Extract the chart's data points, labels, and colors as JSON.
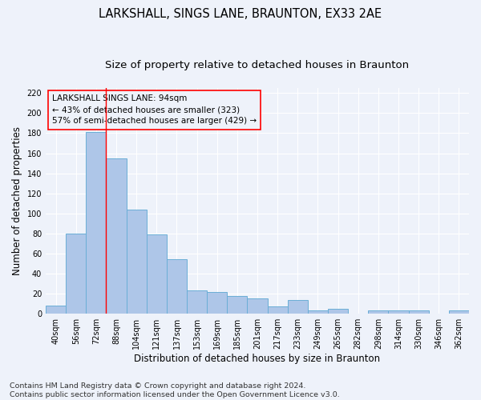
{
  "title": "LARKSHALL, SINGS LANE, BRAUNTON, EX33 2AE",
  "subtitle": "Size of property relative to detached houses in Braunton",
  "xlabel": "Distribution of detached houses by size in Braunton",
  "ylabel": "Number of detached properties",
  "categories": [
    "40sqm",
    "56sqm",
    "72sqm",
    "88sqm",
    "104sqm",
    "121sqm",
    "137sqm",
    "153sqm",
    "169sqm",
    "185sqm",
    "201sqm",
    "217sqm",
    "233sqm",
    "249sqm",
    "265sqm",
    "282sqm",
    "298sqm",
    "314sqm",
    "330sqm",
    "346sqm",
    "362sqm"
  ],
  "values": [
    8,
    80,
    181,
    155,
    104,
    79,
    54,
    23,
    22,
    18,
    15,
    7,
    14,
    3,
    5,
    0,
    3,
    3,
    3,
    0,
    3
  ],
  "bar_color": "#aec6e8",
  "bar_edge_color": "#6aaed6",
  "vline_x": 2.5,
  "vline_color": "red",
  "annotation_text_line1": "LARKSHALL SINGS LANE: 94sqm",
  "annotation_text_line2": "← 43% of detached houses are smaller (323)",
  "annotation_text_line3": "57% of semi-detached houses are larger (429) →",
  "ylim": [
    0,
    225
  ],
  "yticks": [
    0,
    20,
    40,
    60,
    80,
    100,
    120,
    140,
    160,
    180,
    200,
    220
  ],
  "footer_line1": "Contains HM Land Registry data © Crown copyright and database right 2024.",
  "footer_line2": "Contains public sector information licensed under the Open Government Licence v3.0.",
  "bg_color": "#eef2fa",
  "grid_color": "#ffffff",
  "title_fontsize": 10.5,
  "subtitle_fontsize": 9.5,
  "tick_fontsize": 7,
  "ylabel_fontsize": 8.5,
  "xlabel_fontsize": 8.5,
  "annotation_fontsize": 7.5,
  "footer_fontsize": 6.8
}
